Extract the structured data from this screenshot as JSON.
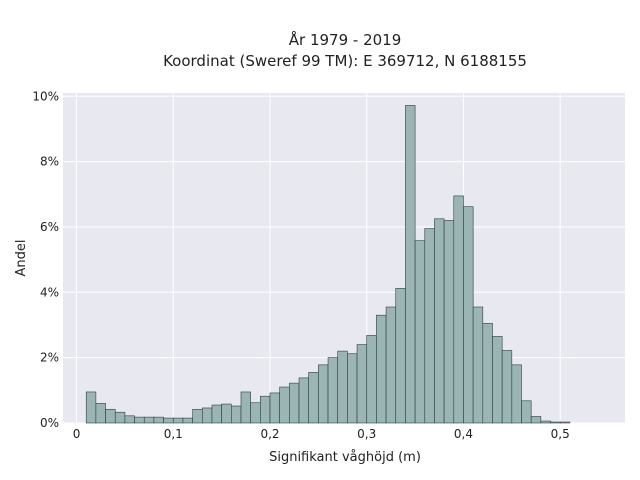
{
  "chart_data": {
    "type": "bar",
    "title_lines": [
      "År 1979 - 2019",
      "Koordinat (Sweref 99 TM): E 369712, N 6188155"
    ],
    "xlabel": "Signifikant våghöjd (m)",
    "ylabel": "Andel",
    "x_ticks": [
      {
        "value": 0,
        "label": "0"
      },
      {
        "value": 0.1,
        "label": "0,1"
      },
      {
        "value": 0.2,
        "label": "0,2"
      },
      {
        "value": 0.3,
        "label": "0,3"
      },
      {
        "value": 0.4,
        "label": "0,4"
      },
      {
        "value": 0.5,
        "label": "0,5"
      }
    ],
    "y_ticks": [
      {
        "value": 0,
        "label": "0%"
      },
      {
        "value": 2,
        "label": "2%"
      },
      {
        "value": 4,
        "label": "4%"
      },
      {
        "value": 6,
        "label": "6%"
      },
      {
        "value": 8,
        "label": "8%"
      },
      {
        "value": 10,
        "label": "10%"
      }
    ],
    "xlim": [
      -0.014,
      0.567
    ],
    "ylim": [
      0,
      10.1
    ],
    "bin_start": 0.01,
    "bin_width": 0.01,
    "values_percent": [
      0.95,
      0.6,
      0.42,
      0.33,
      0.22,
      0.18,
      0.18,
      0.18,
      0.15,
      0.15,
      0.15,
      0.42,
      0.46,
      0.55,
      0.58,
      0.52,
      0.95,
      0.62,
      0.82,
      0.92,
      1.1,
      1.22,
      1.38,
      1.55,
      1.78,
      2.0,
      2.2,
      2.12,
      2.4,
      2.68,
      3.3,
      3.55,
      4.12,
      9.72,
      5.58,
      5.95,
      6.25,
      6.2,
      6.95,
      6.62,
      3.55,
      3.05,
      2.65,
      2.22,
      1.78,
      0.68,
      0.2,
      0.06,
      0.03,
      0.03
    ],
    "grid": true,
    "colors": {
      "background": "#e8e8f0",
      "grid": "#ffffff",
      "bar_fill": "#9bb4b4",
      "bar_stroke": "#2f3f3f",
      "text": "#222222"
    }
  }
}
